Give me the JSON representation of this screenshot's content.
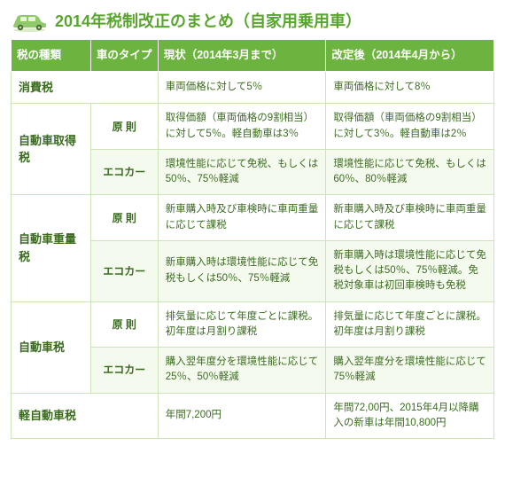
{
  "colors": {
    "title": "#5aa52e",
    "header_bg": "#6db33f",
    "header_text": "#ffffff",
    "border": "#cfe3b9",
    "cell_text": "#3a6b1f",
    "cell_light": "#f5faee",
    "cell_white": "#ffffff"
  },
  "title": "2014年税制改正のまとめ（自家用乗用車）",
  "columns": {
    "tax": "税の種類",
    "type": "車のタイプ",
    "current": "現状（2014年3月まで）",
    "after": "改定後（2014年4月から）"
  },
  "rows": [
    {
      "tax": "消費税",
      "type": "",
      "current": "車両価格に対して5％",
      "after": "車両価格に対して8％"
    },
    {
      "tax": "自動車取得税",
      "type": "原 則",
      "current": "取得価額（車両価格の9割相当）に対して5％。軽自動車は3％",
      "after": "取得価額（車両価格の9割相当）に対して3％。軽自動車は2％"
    },
    {
      "tax": "",
      "type": "エコカー",
      "current": "環境性能に応じて免税、もしくは50％、75％軽減",
      "after": "環境性能に応じて免税、もしくは60％、80％軽減"
    },
    {
      "tax": "自動車重量税",
      "type": "原 則",
      "current": "新車購入時及び車検時に車両重量に応じて課税",
      "after": "新車購入時及び車検時に車両重量に応じて課税"
    },
    {
      "tax": "",
      "type": "エコカー",
      "current": "新車購入時は環境性能に応じて免税もしくは50％、75％軽減",
      "after": "新車購入時は環境性能に応じて免税もしくは50％、75％軽減。免税対象車は初回車検時も免税"
    },
    {
      "tax": "自動車税",
      "type": "原 則",
      "current": "排気量に応じて年度ごとに課税。初年度は月割り課税",
      "after": "排気量に応じて年度ごとに課税。初年度は月割り課税"
    },
    {
      "tax": "",
      "type": "エコカー",
      "current": "購入翌年度分を環境性能に応じて25％、50％軽減",
      "after": "購入翌年度分を環境性能に応じて75％軽減"
    },
    {
      "tax": "軽自動車税",
      "type": "",
      "current": "年間7,200円",
      "after": "年間72,00円、2015年4月以降購入の新車は年間10,800円"
    }
  ]
}
